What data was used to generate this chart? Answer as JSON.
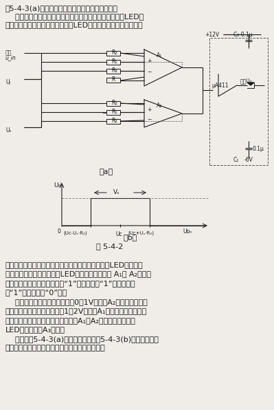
{
  "title": "图5-4-3(a)电路是为显示视频信号电平面设计的。",
  "line1": "    当输入电平处于上、下阀电平之间时，加在发光二极管LED上",
  "line2": "的电压为正，这时绿色发光二极管LED发光。如果输入信号电平高",
  "circuit_a_label": "（a）",
  "circuit_b_label": "（b）",
  "fig_label": "图 5-4-2",
  "bottom_lines": [
    "于上限阀电平或低于下限阀电平时，加在发光二极管LED上的电压",
    "为负，这时红色发光二极管LED发光。电压比较器 A₁和 A₂相当于",
    "一个异或门（即两输入之一为“1”时，输出为“1”，两输入均",
    "为“1”时，输出是“0”）。",
    "    当输入电压低于下限阀电平（0～1V）时，A₂输出为低电平，",
    "而输入电压高于上限阀电平（1～2V）时，A₁输出为低电平，只有",
    "当输入电压在上、下阀电平之间时，A₁、A₂输出均为高电平。",
    "LED是由放大器A₃驱动。",
    "    如果将图5-4-3(a)的输出部份改成图5-4-3(b)的电路形式，",
    "则可以表明输入是高于还是低于预定的电平范围。"
  ],
  "bg_color": "#f0ede8",
  "text_color": "#1a1a1a",
  "fs_main": 8.0,
  "fs_small": 6.5,
  "fs_tiny": 5.5
}
